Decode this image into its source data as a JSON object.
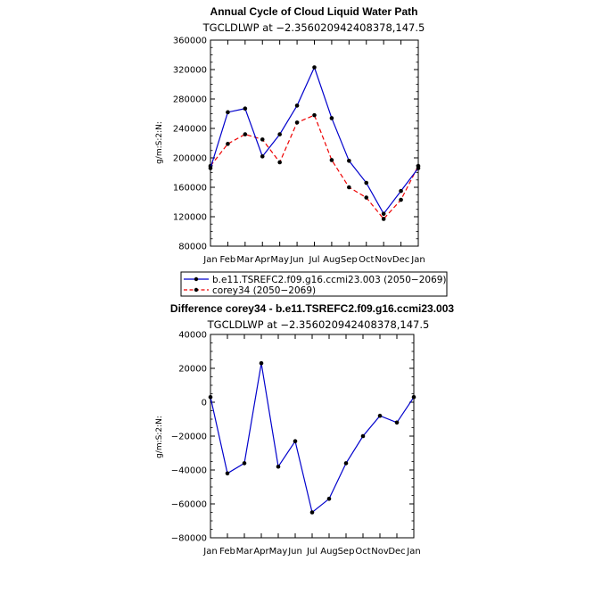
{
  "chart_data": [
    {
      "type": "line",
      "title": "Annual Cycle of Cloud Liquid Water Path",
      "subtitle": "TGCLDLWP at −2.356020942408378,147.5",
      "ylabel": "g/m:S:2:N:",
      "xlabel": "",
      "categories": [
        "Jan",
        "Feb",
        "Mar",
        "Apr",
        "May",
        "Jun",
        "Jul",
        "Aug",
        "Sep",
        "Oct",
        "Nov",
        "Dec",
        "Jan"
      ],
      "ylim": [
        80000,
        360000
      ],
      "yticks": [
        "80000",
        "120000",
        "160000",
        "200000",
        "240000",
        "280000",
        "320000",
        "360000"
      ],
      "grid": false,
      "legend": "below",
      "series": [
        {
          "name": "b.e11.TSREFC2.f09.g16.ccmi23.003 (2050−2069)",
          "color": "#0000cc",
          "dash": "solid",
          "values": [
            186000,
            262000,
            267000,
            202000,
            232000,
            271000,
            323000,
            254000,
            196000,
            166000,
            124000,
            155000,
            186000
          ]
        },
        {
          "name": "corey34 (2050−2069)",
          "color": "#ee0000",
          "dash": "dashed",
          "values": [
            189000,
            219000,
            232000,
            225000,
            194000,
            248000,
            258000,
            197000,
            160000,
            146000,
            117000,
            143000,
            189000
          ]
        }
      ]
    },
    {
      "type": "line",
      "title": "Difference corey34 - b.e11.TSREFC2.f09.g16.ccmi23.003",
      "subtitle": "TGCLDLWP at −2.356020942408378,147.5",
      "ylabel": "g/m:S:2:N:",
      "xlabel": "",
      "categories": [
        "Jan",
        "Feb",
        "Mar",
        "Apr",
        "May",
        "Jun",
        "Jul",
        "Aug",
        "Sep",
        "Oct",
        "Nov",
        "Dec",
        "Jan"
      ],
      "ylim": [
        -80000,
        40000
      ],
      "yticks": [
        "−80000",
        "−60000",
        "−40000",
        "−20000",
        "0",
        "20000",
        "40000"
      ],
      "grid": false,
      "series": [
        {
          "name": "",
          "color": "#0000cc",
          "dash": "solid",
          "values": [
            3000,
            -42000,
            -36000,
            23000,
            -38000,
            -23000,
            -65000,
            -57000,
            -36000,
            -20000,
            -8000,
            -12000,
            3000
          ]
        }
      ]
    }
  ]
}
